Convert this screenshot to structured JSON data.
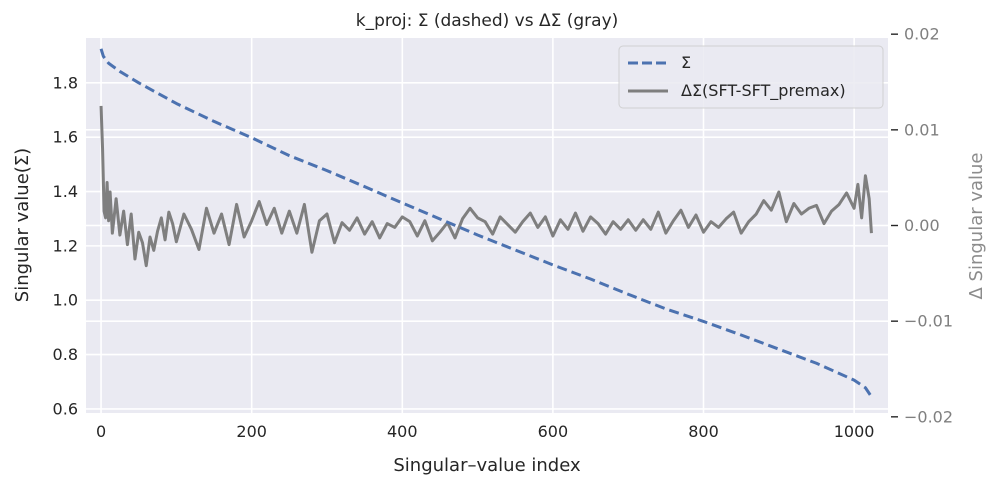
{
  "chart_data": {
    "type": "line",
    "title": "k_proj: Σ (dashed) vs ΔΣ (gray)",
    "xlabel": "Singular–value index",
    "ylabel": "Singular value(Σ)",
    "y2label": "Δ Singular value",
    "xlim": [
      -20,
      1045
    ],
    "ylim": [
      0.585,
      1.965
    ],
    "y2lim": [
      -0.0196,
      0.0196
    ],
    "x_ticks": [
      0,
      200,
      400,
      600,
      800,
      1000
    ],
    "y_ticks": [
      0.6,
      0.8,
      1.0,
      1.2,
      1.4,
      1.6,
      1.8
    ],
    "y_tick_labels": [
      "0.6",
      "0.8",
      "1.0",
      "1.2",
      "1.4",
      "1.6",
      "1.8"
    ],
    "y2_ticks": [
      -0.02,
      -0.01,
      0.0,
      0.01,
      0.02
    ],
    "y2_tick_labels": [
      "−0.02",
      "−0.01",
      "0.00",
      "0.01",
      "0.02"
    ],
    "legend": {
      "position": "upper right",
      "entries": [
        "Σ",
        "ΔΣ(SFT-SFT_premax)"
      ]
    },
    "series": [
      {
        "name": "Σ",
        "axis": "left",
        "style": "dashed",
        "color": "#4c72b0",
        "x": [
          0,
          3,
          10,
          25,
          50,
          100,
          150,
          200,
          250,
          300,
          350,
          400,
          450,
          500,
          550,
          600,
          650,
          700,
          750,
          800,
          850,
          900,
          950,
          1000,
          1015,
          1023
        ],
        "y": [
          1.925,
          1.898,
          1.872,
          1.842,
          1.8,
          1.724,
          1.658,
          1.598,
          1.532,
          1.477,
          1.418,
          1.358,
          1.299,
          1.24,
          1.185,
          1.13,
          1.078,
          1.022,
          0.968,
          0.922,
          0.872,
          0.82,
          0.768,
          0.706,
          0.678,
          0.645
        ]
      },
      {
        "name": "ΔΣ(SFT-SFT_premax)",
        "axis": "right",
        "style": "solid",
        "color": "#7f7f7f",
        "x": [
          0,
          2,
          4,
          6,
          8,
          10,
          12,
          15,
          20,
          25,
          30,
          35,
          40,
          45,
          50,
          55,
          60,
          65,
          70,
          75,
          80,
          85,
          90,
          95,
          100,
          110,
          120,
          130,
          140,
          150,
          160,
          170,
          180,
          190,
          200,
          210,
          220,
          230,
          240,
          250,
          260,
          270,
          280,
          290,
          300,
          310,
          320,
          330,
          340,
          350,
          360,
          370,
          380,
          390,
          400,
          410,
          420,
          430,
          440,
          450,
          460,
          470,
          480,
          490,
          500,
          510,
          520,
          530,
          540,
          550,
          560,
          570,
          580,
          590,
          600,
          610,
          620,
          630,
          640,
          650,
          660,
          670,
          680,
          690,
          700,
          710,
          720,
          730,
          740,
          750,
          760,
          770,
          780,
          790,
          800,
          810,
          820,
          830,
          840,
          850,
          860,
          870,
          880,
          890,
          900,
          910,
          920,
          930,
          940,
          950,
          960,
          970,
          980,
          990,
          1000,
          1005,
          1010,
          1015,
          1020,
          1023
        ],
        "y": [
          0.0125,
          0.008,
          0.0015,
          0.0008,
          0.0045,
          0.0005,
          0.0035,
          -0.0008,
          0.0028,
          -0.001,
          0.0015,
          -0.002,
          0.0012,
          -0.0035,
          -0.0007,
          -0.0018,
          -0.0042,
          -0.0012,
          -0.0026,
          -0.0006,
          0.0008,
          -0.0015,
          0.0014,
          0.0002,
          -0.0017,
          0.0012,
          -0.0004,
          -0.0025,
          0.0018,
          -0.0008,
          0.0012,
          -0.002,
          0.0022,
          -0.0012,
          0.0005,
          0.0025,
          0.0001,
          0.0018,
          -0.0008,
          0.0015,
          -0.0008,
          0.0022,
          -0.0028,
          0.0005,
          0.0012,
          -0.0018,
          0.0003,
          -0.0005,
          0.0008,
          -0.0009,
          0.0004,
          -0.0013,
          0.0002,
          -0.0002,
          0.0009,
          0.0004,
          -0.0011,
          0.0005,
          -0.0016,
          -0.0007,
          0.0003,
          -0.0013,
          0.0007,
          0.0018,
          0.0008,
          0.0004,
          -0.0009,
          0.0009,
          0.0001,
          -0.0007,
          0.0004,
          0.0013,
          -0.0002,
          0.0009,
          -0.0011,
          0.0006,
          -0.0004,
          0.0013,
          -0.0006,
          0.0009,
          0.0002,
          -0.0009,
          0.0004,
          -0.0004,
          0.0006,
          -0.0005,
          0.0006,
          -0.0004,
          0.0014,
          -0.0008,
          0.0005,
          0.0016,
          -0.0002,
          0.0011,
          -0.0007,
          0.0004,
          -0.0002,
          0.0007,
          0.0014,
          -0.0008,
          0.0004,
          0.0012,
          0.0026,
          0.0016,
          0.0035,
          0.0004,
          0.0023,
          0.0012,
          0.0018,
          0.0021,
          0.0002,
          0.0015,
          0.0022,
          0.0034,
          0.0018,
          0.0043,
          0.0008,
          0.0052,
          0.0028,
          -0.0008
        ]
      }
    ]
  }
}
